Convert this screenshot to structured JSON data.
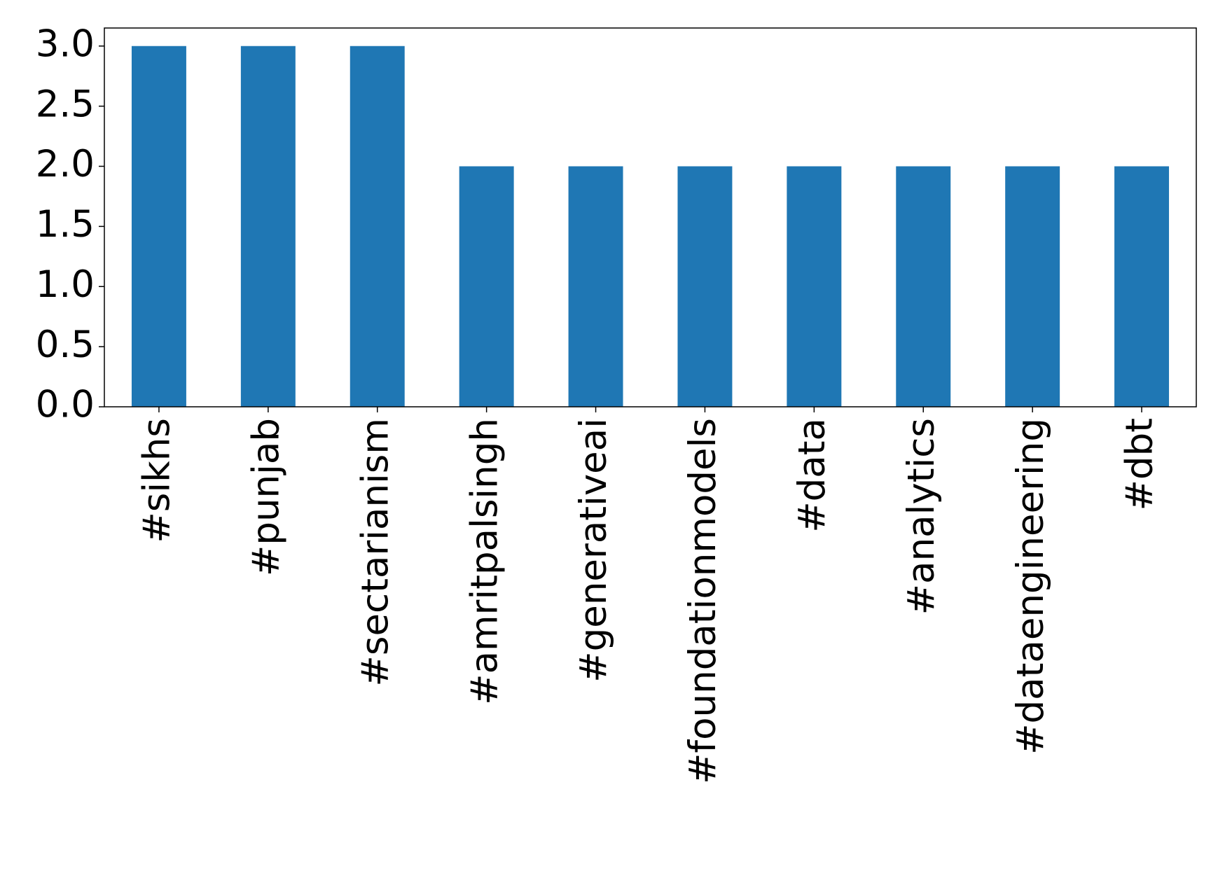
{
  "chart_data": {
    "type": "bar",
    "categories": [
      "#sikhs",
      "#punjab",
      "#sectarianism",
      "#amritpalsingh",
      "#generativeai",
      "#foundationmodels",
      "#data",
      "#analytics",
      "#dataengineering",
      "#dbt"
    ],
    "values": [
      3,
      3,
      3,
      2,
      2,
      2,
      2,
      2,
      2,
      2
    ],
    "color": "#1f77b4",
    "ylim": [
      0,
      3.15
    ],
    "yticks": [
      {
        "value": 0,
        "label": "0.0"
      },
      0.5,
      {
        "value": 1,
        "label": "1.0"
      },
      1.5,
      {
        "value": 2,
        "label": "2.0"
      },
      2.5,
      {
        "value": 3,
        "label": "3.0"
      }
    ],
    "grid": false
  }
}
